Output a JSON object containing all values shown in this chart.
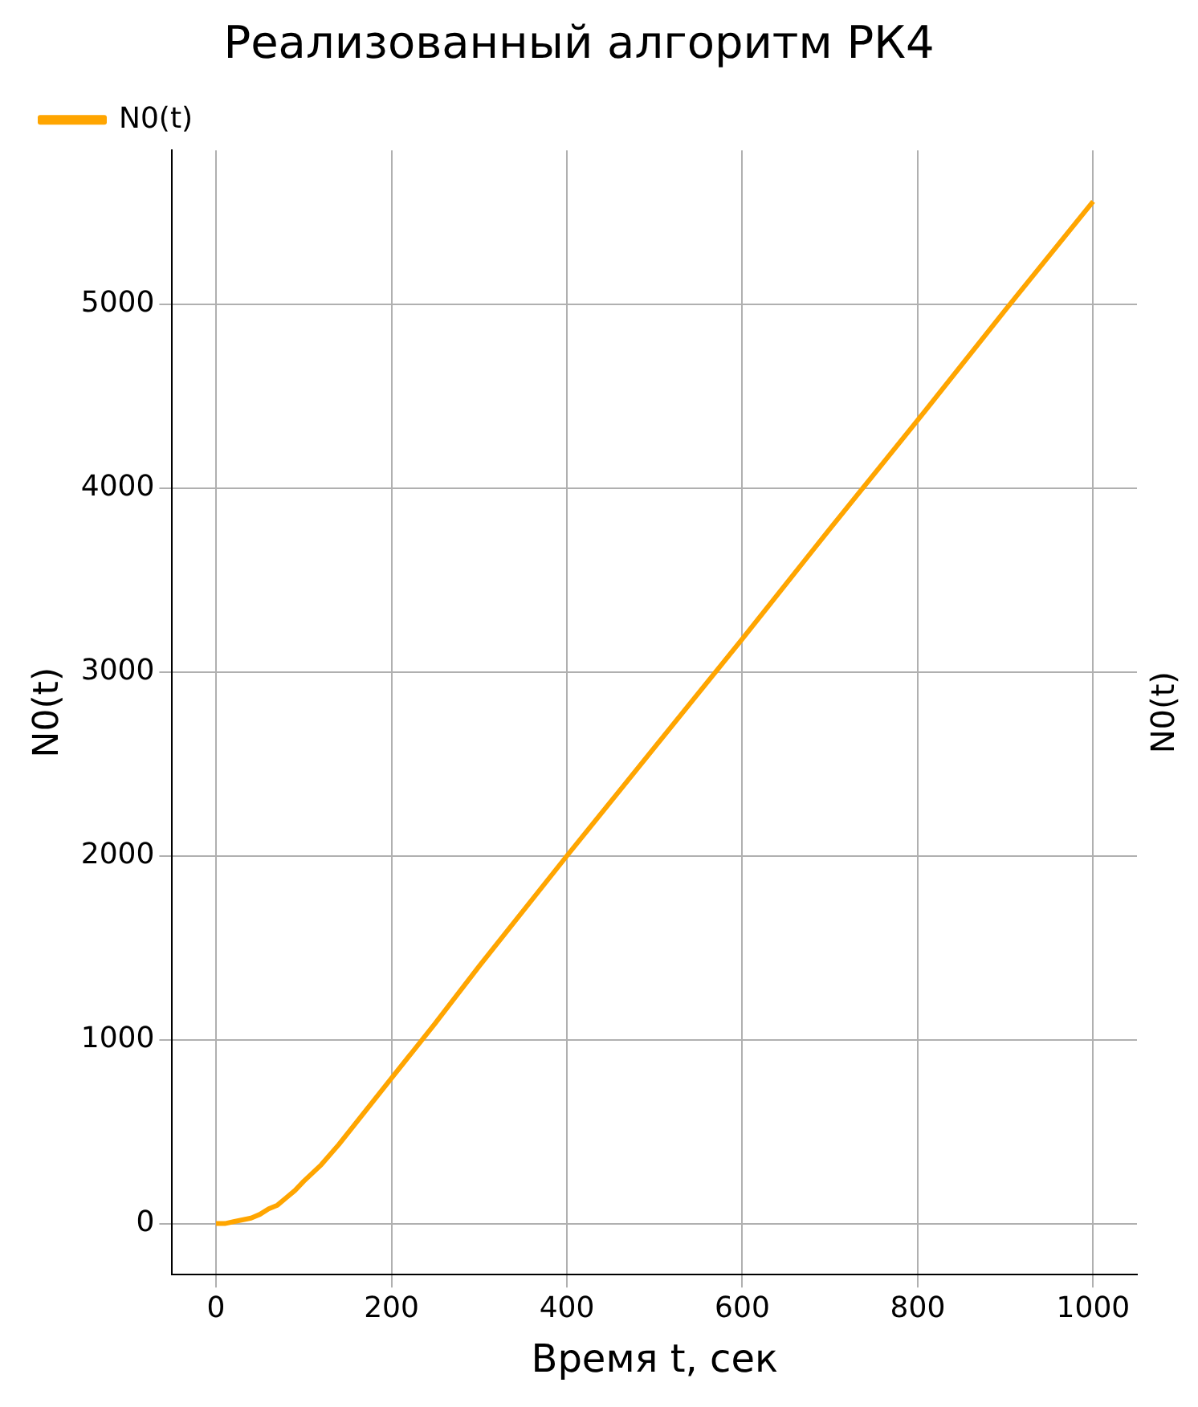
{
  "chart_data": {
    "type": "line",
    "title": "Реализованный алгоритм РК4",
    "xlabel": "Время t, сек",
    "ylabel": "N0(t)",
    "x": [
      0,
      10,
      20,
      30,
      40,
      50,
      60,
      70,
      80,
      90,
      100,
      120,
      140,
      160,
      180,
      200,
      250,
      300,
      400,
      500,
      600,
      700,
      800,
      900,
      1000
    ],
    "series": [
      {
        "name": "N0(t)",
        "color": "#ffa500",
        "values": [
          0,
          0,
          10,
          20,
          30,
          50,
          80,
          100,
          140,
          180,
          230,
          320,
          430,
          550,
          670,
          790,
          1090,
          1400,
          2000,
          2590,
          3180,
          3780,
          4370,
          4970,
          5560
        ]
      }
    ],
    "xlim": [
      -50,
      1050
    ],
    "ylim": [
      -278,
      5838
    ],
    "xticks": [
      0,
      200,
      400,
      600,
      800,
      1000
    ],
    "yticks": [
      0,
      1000,
      2000,
      3000,
      4000,
      5000
    ],
    "grid": true,
    "legend": "top left",
    "marker": "none",
    "line_style": "solid",
    "annotations": [
      "N0(t)"
    ]
  }
}
